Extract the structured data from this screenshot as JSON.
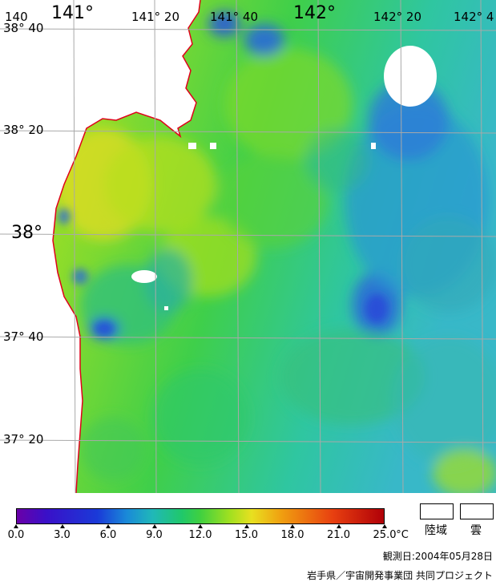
{
  "map": {
    "lon_labels": [
      {
        "text": "140",
        "size": "small"
      },
      {
        "text": "141°",
        "size": "big"
      },
      {
        "text": "141° 20",
        "size": "small"
      },
      {
        "text": "141° 40",
        "size": "small"
      },
      {
        "text": "142°",
        "size": "big"
      },
      {
        "text": "142° 20",
        "size": "small"
      },
      {
        "text": "142° 4",
        "size": "small"
      }
    ],
    "lat_labels": [
      {
        "text": "38° 40",
        "size": "small"
      },
      {
        "text": "38° 20",
        "size": "small"
      },
      {
        "text": "38°",
        "size": "big"
      },
      {
        "text": "37° 40",
        "size": "small"
      },
      {
        "text": "37° 20",
        "size": "small"
      }
    ],
    "land_color": "#ffffff",
    "coast_color": "#e0001a",
    "grid_color": "#a9a9a9"
  },
  "legend": {
    "ticks": [
      "0.0",
      "3.0",
      "6.0",
      "9.0",
      "12.0",
      "15.0",
      "18.0",
      "21.0",
      "25.0"
    ],
    "unit": "°C",
    "land_label": "陸域",
    "cloud_label": "雲"
  },
  "footer": {
    "date": "観測日:2004年05月28日",
    "credit": "岩手県／宇宙開発事業団 共同プロジェクト"
  }
}
